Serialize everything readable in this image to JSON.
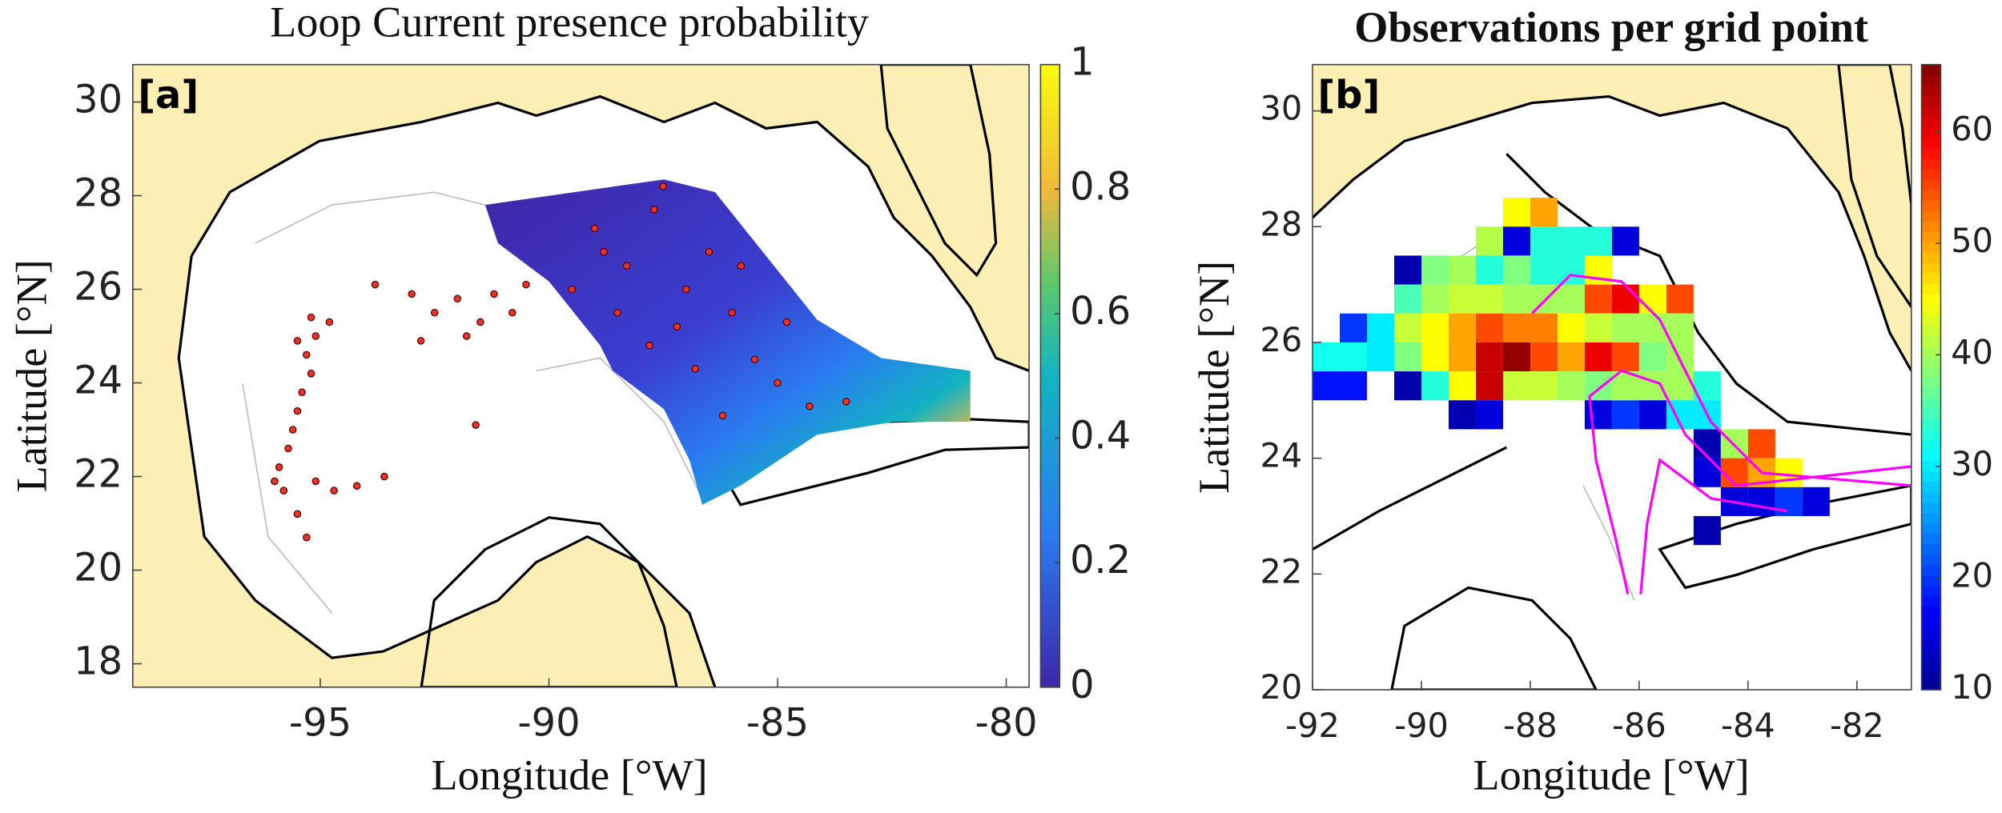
{
  "chart_data": [
    {
      "type": "scatter",
      "title": "Loop Current presence probability",
      "panel_label": "[a]",
      "x_label": "Longitude [°W]",
      "y_label": "Latitude [°N]",
      "x": [
        -95.2,
        -95.1,
        -95.3,
        -95.2,
        -95.4,
        -95.5,
        -95.6,
        -95.7,
        -95.9,
        -96.0,
        -95.8,
        -95.5,
        -95.3,
        -95.1,
        -94.7,
        -94.2,
        -93.6,
        -95.5,
        -94.8,
        -93.0,
        -92.5,
        -92.0,
        -91.5,
        -91.2,
        -90.8,
        -90.5,
        -92.8,
        -91.8,
        -93.8,
        -91.6,
        -89.0,
        -88.3,
        -87.7,
        -87.5,
        -87.0,
        -86.5,
        -86.0,
        -85.5,
        -85.0,
        -84.3,
        -83.5,
        -88.5,
        -87.8,
        -86.8,
        -86.2,
        -89.5,
        -88.8,
        -85.8,
        -84.8,
        -87.2
      ],
      "y": [
        25.4,
        25.0,
        24.6,
        24.2,
        23.8,
        23.4,
        23.0,
        22.6,
        22.2,
        21.9,
        21.7,
        21.2,
        20.7,
        21.9,
        21.7,
        21.8,
        22.0,
        24.9,
        25.3,
        25.9,
        25.5,
        25.8,
        25.3,
        25.9,
        25.5,
        26.1,
        24.9,
        25.0,
        26.1,
        23.1,
        27.3,
        26.5,
        27.7,
        28.2,
        26.0,
        26.8,
        25.5,
        24.5,
        24.0,
        23.5,
        23.6,
        25.5,
        24.8,
        24.3,
        23.3,
        26.0,
        26.8,
        26.5,
        25.3,
        25.2
      ],
      "point_color": "#e8352b",
      "xlim": [
        -99.1,
        -79.5
      ],
      "ylim": [
        17.5,
        30.8
      ],
      "xticks": [
        -95,
        -90,
        -85,
        -80
      ],
      "yticks": [
        18,
        20,
        22,
        24,
        26,
        28,
        30
      ],
      "colorbar": {
        "colormap": "parula",
        "lim": [
          0,
          1
        ],
        "ticks": [
          0,
          0.2,
          0.4,
          0.6,
          0.8,
          1
        ]
      }
    },
    {
      "type": "heatmap",
      "title": "Observations per grid point",
      "panel_label": "[b]",
      "x_label": "Longitude [°W]",
      "y_label": "Latitude [°N]",
      "x": [
        -88.5,
        -88,
        -89,
        -88.5,
        -88,
        -87.5,
        -87,
        -86.5,
        -90.5,
        -90,
        -89.5,
        -89,
        -88.5,
        -88,
        -87.5,
        -87,
        -90.5,
        -90,
        -89.5,
        -89,
        -88.5,
        -88,
        -87.5,
        -87,
        -86.5,
        -86,
        -85.5,
        -91.5,
        -91,
        -90.5,
        -90,
        -89.5,
        -89,
        -88.5,
        -88,
        -87.5,
        -87,
        -86.5,
        -86,
        -85.5,
        -92,
        -91.5,
        -91,
        -90.5,
        -90,
        -89.5,
        -89,
        -88.5,
        -88,
        -87.5,
        -87,
        -86.5,
        -86,
        -85.5,
        -92,
        -91.5,
        -90.5,
        -90,
        -89.5,
        -89,
        -88.5,
        -88,
        -87.5,
        -87,
        -86.5,
        -86,
        -85.5,
        -85,
        -89.5,
        -89,
        -87,
        -86.5,
        -86,
        -85.5,
        -85,
        -85,
        -84.5,
        -84,
        -85,
        -84.5,
        -84,
        -83.5,
        -84.5,
        -84,
        -83.5,
        -83,
        -85
      ],
      "y": [
        28,
        28,
        27.5,
        27.5,
        27.5,
        27.5,
        27.5,
        27.5,
        27,
        27,
        27,
        27,
        27,
        27,
        27,
        27,
        26.5,
        26.5,
        26.5,
        26.5,
        26.5,
        26.5,
        26.5,
        26.5,
        26.5,
        26.5,
        26.5,
        26,
        26,
        26,
        26,
        26,
        26,
        26,
        26,
        26,
        26,
        26,
        26,
        26,
        25.5,
        25.5,
        25.5,
        25.5,
        25.5,
        25.5,
        25.5,
        25.5,
        25.5,
        25.5,
        25.5,
        25.5,
        25.5,
        25.5,
        25,
        25,
        25,
        25,
        25,
        25,
        25,
        25,
        25,
        25,
        25,
        25,
        25,
        25,
        24.5,
        24.5,
        24.5,
        24.5,
        24.5,
        24.5,
        24.5,
        24,
        24,
        24,
        23.5,
        23.5,
        23.5,
        23.5,
        23,
        23,
        23,
        23,
        22.5
      ],
      "values": [
        45,
        50,
        41,
        15,
        33,
        33,
        33,
        15,
        12,
        38,
        40,
        33,
        38,
        33,
        33,
        45,
        35,
        40,
        42,
        42,
        40,
        40,
        40,
        55,
        60,
        45,
        55,
        20,
        30,
        42,
        45,
        50,
        55,
        52,
        52,
        45,
        42,
        40,
        40,
        40,
        32,
        32,
        30,
        38,
        45,
        50,
        62,
        65,
        55,
        50,
        60,
        55,
        38,
        40,
        18,
        18,
        12,
        33,
        45,
        62,
        42,
        42,
        40,
        38,
        40,
        40,
        40,
        33,
        12,
        15,
        15,
        20,
        15,
        30,
        30,
        12,
        40,
        55,
        15,
        55,
        50,
        45,
        15,
        15,
        20,
        15,
        12
      ],
      "xlim": [
        -92,
        -81
      ],
      "ylim": [
        20,
        30.8
      ],
      "xticks": [
        -92,
        -90,
        -88,
        -86,
        -84,
        -82
      ],
      "yticks": [
        20,
        22,
        24,
        26,
        28,
        30
      ],
      "colorbar": {
        "colormap": "jet",
        "lim": [
          10,
          66
        ],
        "ticks": [
          10,
          20,
          30,
          40,
          50,
          60
        ]
      }
    }
  ]
}
